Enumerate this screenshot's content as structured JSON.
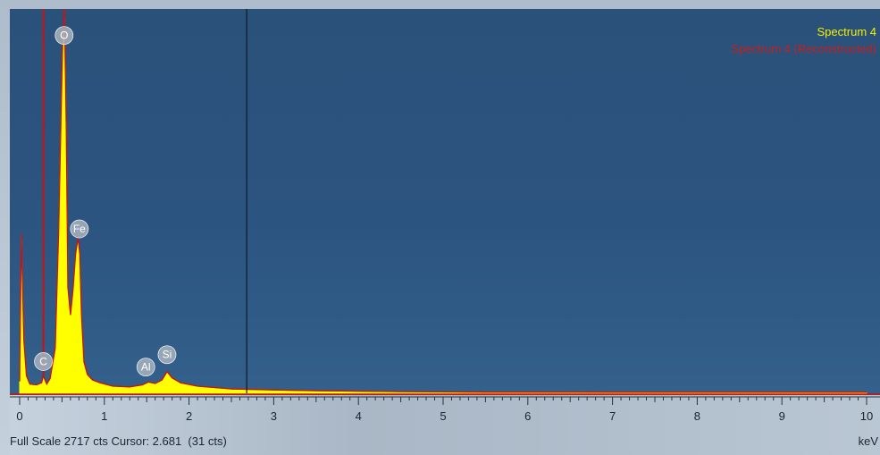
{
  "chart_data": {
    "type": "area",
    "series": [
      {
        "name": "Spectrum 4",
        "color": "#ffff00",
        "fill": "#ffff00"
      },
      {
        "name": "Spectrum 4 (Reconstructed)",
        "color": "#cc1111"
      }
    ],
    "x": [
      0.0,
      0.02,
      0.05,
      0.08,
      0.12,
      0.2,
      0.26,
      0.28,
      0.3,
      0.32,
      0.36,
      0.42,
      0.46,
      0.49,
      0.51,
      0.53,
      0.55,
      0.57,
      0.6,
      0.63,
      0.66,
      0.69,
      0.71,
      0.73,
      0.76,
      0.8,
      0.86,
      0.95,
      1.1,
      1.3,
      1.45,
      1.52,
      1.6,
      1.68,
      1.74,
      1.8,
      1.9,
      2.1,
      2.5,
      3.0,
      3.5,
      4.0,
      4.5,
      5.0,
      5.5,
      6.0,
      7.0,
      8.0,
      9.0,
      10.0
    ],
    "y": [
      80,
      1150,
      380,
      120,
      60,
      55,
      70,
      120,
      90,
      60,
      100,
      320,
      1150,
      2050,
      2580,
      2717,
      1950,
      760,
      560,
      740,
      1000,
      1120,
      1000,
      560,
      220,
      130,
      90,
      70,
      45,
      40,
      55,
      75,
      65,
      90,
      150,
      105,
      70,
      45,
      25,
      18,
      12,
      9,
      6,
      4,
      2,
      2,
      1,
      1,
      1,
      1
    ],
    "xlim": [
      0,
      10
    ],
    "ylim": [
      0,
      2717
    ],
    "xticks": [
      0,
      1,
      2,
      3,
      4,
      5,
      6,
      7,
      8,
      9,
      10
    ],
    "xlabel": "keV",
    "cursor_x": 2.681,
    "peak_labels": [
      {
        "text": "O",
        "x": 0.525,
        "y": 2590
      },
      {
        "text": "Fe",
        "x": 0.705,
        "y": 1190
      },
      {
        "text": "C",
        "x": 0.28,
        "y": 230
      },
      {
        "text": "Al",
        "x": 1.49,
        "y": 190
      },
      {
        "text": "Si",
        "x": 1.74,
        "y": 280
      }
    ],
    "marker_x": [
      0.28,
      0.525
    ]
  },
  "legend": [
    "Spectrum 4",
    "Spectrum 4 (Reconstructed)"
  ],
  "footer_text": "Full Scale 2717 cts Cursor: 2.681  (31 cts)",
  "unit_label": "keV"
}
